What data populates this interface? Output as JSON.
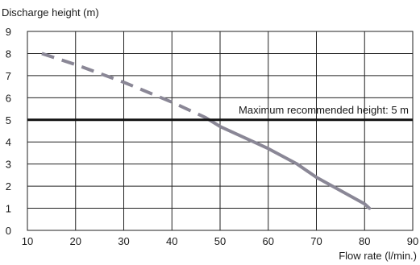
{
  "chart_data": {
    "type": "line",
    "title": "",
    "ylabel": "Discharge height (m)",
    "xlabel": "Flow rate (l/min.)",
    "xlim": [
      10,
      90
    ],
    "ylim": [
      0,
      9
    ],
    "x_ticks": [
      10,
      20,
      30,
      40,
      50,
      60,
      70,
      80,
      90
    ],
    "y_ticks": [
      0,
      1,
      2,
      3,
      4,
      5,
      6,
      7,
      8,
      9
    ],
    "grid": true,
    "series": [
      {
        "style": "dashed",
        "color": "#8a8796",
        "x": [
          13,
          20,
          30,
          40,
          47
        ],
        "y": [
          8.0,
          7.5,
          6.7,
          5.8,
          5.1
        ]
      },
      {
        "style": "solid",
        "color": "#8a8796",
        "x": [
          47,
          50,
          60,
          66,
          70,
          80,
          81
        ],
        "y": [
          5.1,
          4.7,
          3.7,
          3.0,
          2.4,
          1.2,
          1.0
        ]
      }
    ],
    "reference_line": {
      "y": 5,
      "color": "#111111",
      "label": "Maximum recommended height: 5 m"
    }
  }
}
